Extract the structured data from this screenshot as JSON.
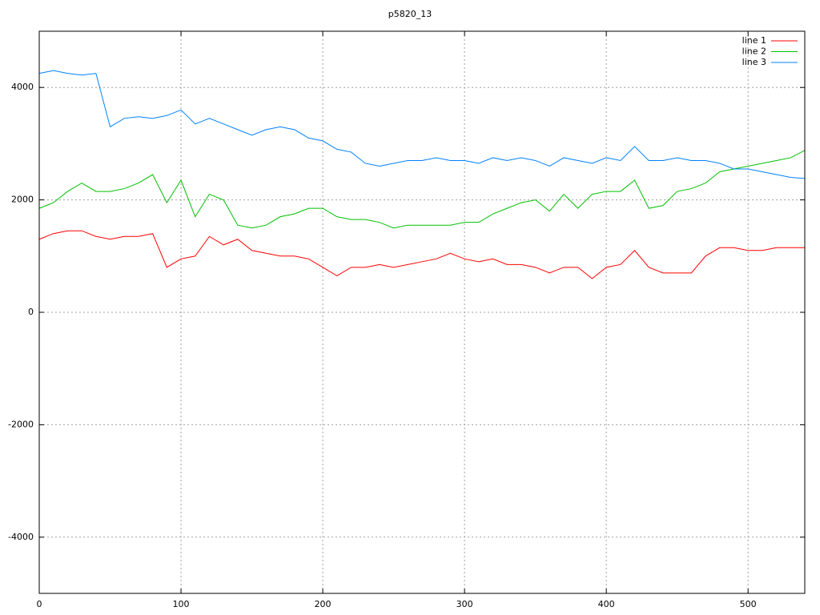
{
  "chart_data": {
    "type": "line",
    "title": "p5820_13",
    "x": [
      0,
      10,
      20,
      30,
      40,
      50,
      60,
      70,
      80,
      90,
      100,
      110,
      120,
      130,
      140,
      150,
      160,
      170,
      180,
      190,
      200,
      210,
      220,
      230,
      240,
      250,
      260,
      270,
      280,
      290,
      300,
      310,
      320,
      330,
      340,
      350,
      360,
      370,
      380,
      390,
      400,
      410,
      420,
      430,
      440,
      450,
      460,
      470,
      480,
      490,
      500,
      510,
      520,
      530,
      540
    ],
    "series": [
      {
        "name": "line 1",
        "color": "#ff0000",
        "values": [
          1300,
          1400,
          1450,
          1450,
          1350,
          1300,
          1350,
          1350,
          1400,
          800,
          950,
          1000,
          1350,
          1200,
          1300,
          1100,
          1050,
          1000,
          1000,
          950,
          800,
          650,
          800,
          800,
          850,
          800,
          850,
          900,
          950,
          1050,
          950,
          900,
          950,
          850,
          850,
          800,
          700,
          800,
          800,
          600,
          800,
          850,
          1100,
          800,
          700,
          700,
          700,
          1000,
          1150,
          1150,
          1100,
          1100,
          1150,
          1150,
          1150
        ]
      },
      {
        "name": "line 2",
        "color": "#00c000",
        "values": [
          1850,
          1950,
          2150,
          2300,
          2150,
          2150,
          2200,
          2300,
          2450,
          1950,
          2350,
          1700,
          2100,
          2000,
          1550,
          1500,
          1550,
          1700,
          1750,
          1850,
          1850,
          1700,
          1650,
          1650,
          1600,
          1500,
          1550,
          1550,
          1550,
          1550,
          1600,
          1600,
          1750,
          1850,
          1950,
          2000,
          1800,
          2100,
          1850,
          2100,
          2150,
          2150,
          2350,
          1850,
          1900,
          2150,
          2200,
          2300,
          2500,
          2550,
          2600,
          2650,
          2700,
          2750,
          2880
        ]
      },
      {
        "name": "line 3",
        "color": "#0080ff",
        "values": [
          4250,
          4300,
          4250,
          4220,
          4250,
          3300,
          3450,
          3480,
          3450,
          3500,
          3600,
          3350,
          3450,
          3350,
          3250,
          3150,
          3250,
          3300,
          3250,
          3100,
          3050,
          2900,
          2850,
          2650,
          2600,
          2650,
          2700,
          2700,
          2750,
          2700,
          2700,
          2650,
          2750,
          2700,
          2750,
          2700,
          2600,
          2750,
          2700,
          2650,
          2750,
          2700,
          2950,
          2700,
          2700,
          2750,
          2700,
          2700,
          2650,
          2550,
          2550,
          2500,
          2450,
          2400,
          2380
        ]
      }
    ],
    "xlim": [
      0,
      540
    ],
    "ylim": [
      -5000,
      5000
    ],
    "xticks": [
      0,
      100,
      200,
      300,
      400,
      500
    ],
    "yticks": [
      -4000,
      -2000,
      0,
      2000,
      4000
    ],
    "grid": true,
    "legend": "top right"
  }
}
